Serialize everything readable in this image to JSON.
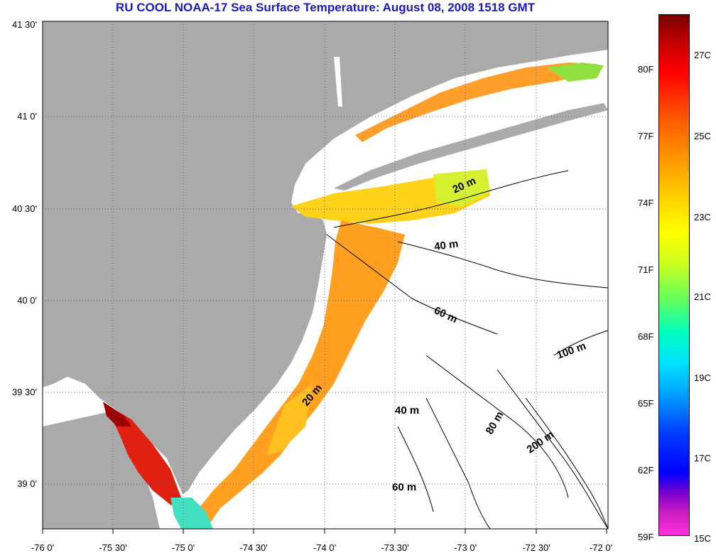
{
  "title": "RU COOL  NOAA-17  Sea Surface Temperature:  August 08, 2008 1518 GMT",
  "map": {
    "lat_labels": [
      "41 30'",
      "41 0'",
      "40 30'",
      "40 0'",
      "39 30'",
      "39 0'"
    ],
    "lon_labels": [
      "-76 0'",
      "-75 30'",
      "-75 0'",
      "-74 30'",
      "-74 0'",
      "-73 30'",
      "-73 0'",
      "-72 30'",
      "-72 0'"
    ],
    "isobath_labels": [
      "20 m",
      "40 m",
      "60 m",
      "20 m",
      "40 m",
      "80 m",
      "100 m",
      "200 m",
      "60 m"
    ]
  },
  "colorbar": {
    "fahrenheit_labels": [
      "80F",
      "77F",
      "74F",
      "71F",
      "68F",
      "65F",
      "62F",
      "59F"
    ],
    "celsius_labels": [
      "27C",
      "25C",
      "23C",
      "21C",
      "19C",
      "17C",
      "15C"
    ]
  },
  "colors": {
    "land": "#aaaaaa",
    "water_no_data": "#ffffff",
    "title": "#1a1ab4"
  }
}
